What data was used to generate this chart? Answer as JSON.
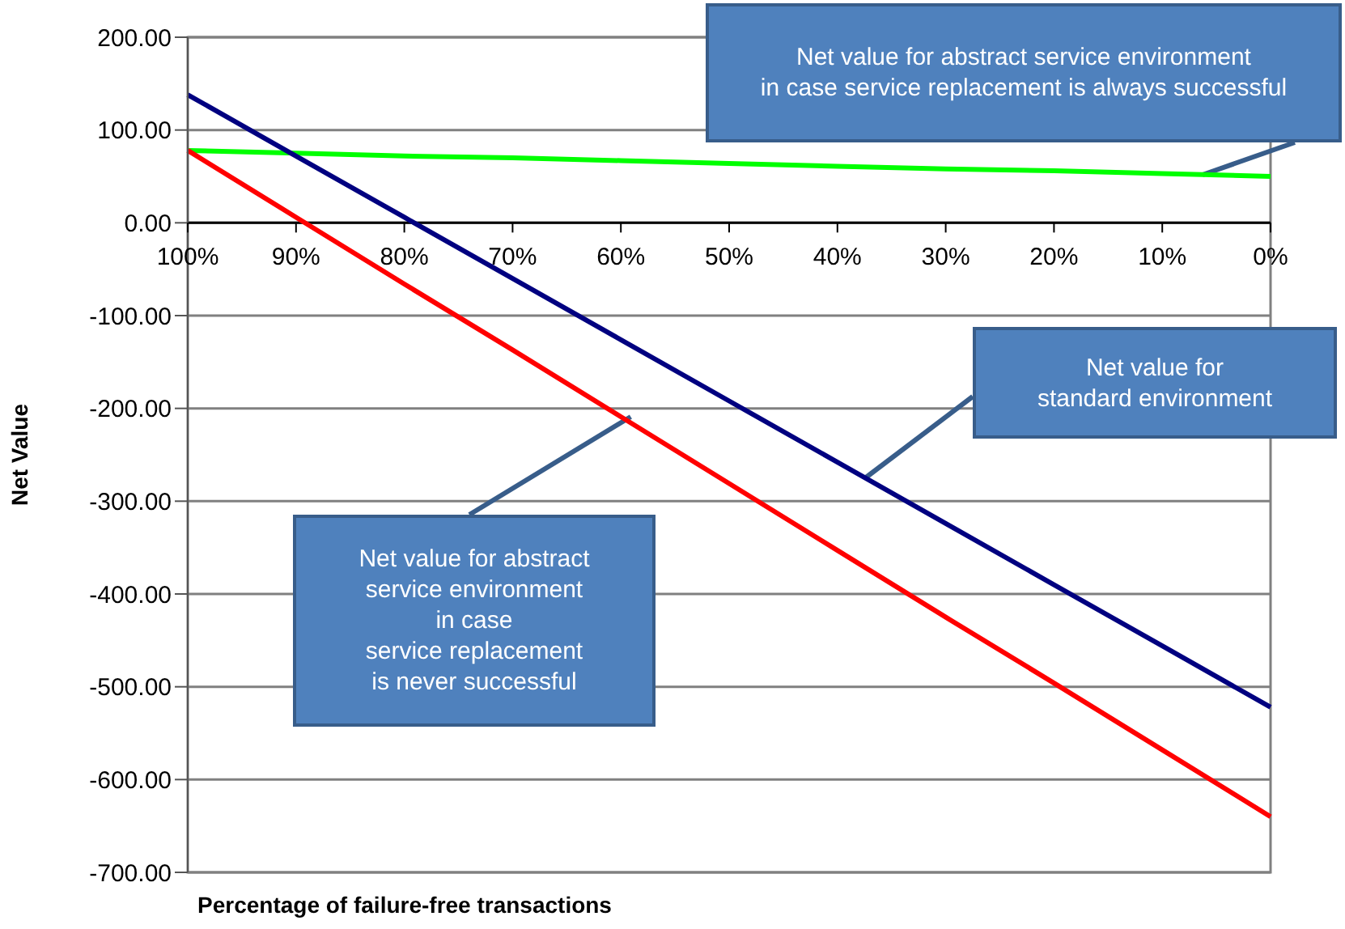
{
  "chart_data": {
    "type": "line",
    "xlabel": "Percentage of failure-free transactions",
    "ylabel": "Net Value",
    "categories": [
      "100%",
      "90%",
      "80%",
      "70%",
      "60%",
      "50%",
      "40%",
      "30%",
      "20%",
      "10%",
      "0%"
    ],
    "series": [
      {
        "color": "#00ff00",
        "values": [
          78,
          75,
          72,
          70,
          67,
          64,
          61,
          58,
          56,
          53,
          50
        ]
      },
      {
        "color": "#000080",
        "values": [
          138,
          72,
          6,
          -60,
          -126,
          -192,
          -258,
          -324,
          -390,
          -456,
          -522
        ]
      },
      {
        "color": "#ff0000",
        "values": [
          78,
          6,
          -66,
          -137,
          -209,
          -281,
          -353,
          -425,
          -496,
          -568,
          -640
        ]
      }
    ],
    "ylim": [
      -700,
      200
    ],
    "yticks": [
      {
        "value": 200,
        "label": "200.00"
      },
      {
        "value": 100,
        "label": "100.00"
      },
      {
        "value": 0,
        "label": "0.00"
      },
      {
        "value": -100,
        "label": "-100.00"
      },
      {
        "value": -200,
        "label": "-200.00"
      },
      {
        "value": -300,
        "label": "-300.00"
      },
      {
        "value": -400,
        "label": "-400.00"
      },
      {
        "value": -500,
        "label": "-500.00"
      },
      {
        "value": -600,
        "label": "-600.00"
      },
      {
        "value": -700,
        "label": "-700.00"
      }
    ],
    "grid": "y",
    "marker": "none",
    "line_style": "solid",
    "annotations": [
      "Net value for abstract service environment\nin case service replacement is always successful",
      "Net value for\nstandard environment",
      {
        "text": "Net value for abstract\nservice environment\nin case\nservice replacement\nis never successful",
        "x": "60%",
        "y": -209
      }
    ]
  }
}
